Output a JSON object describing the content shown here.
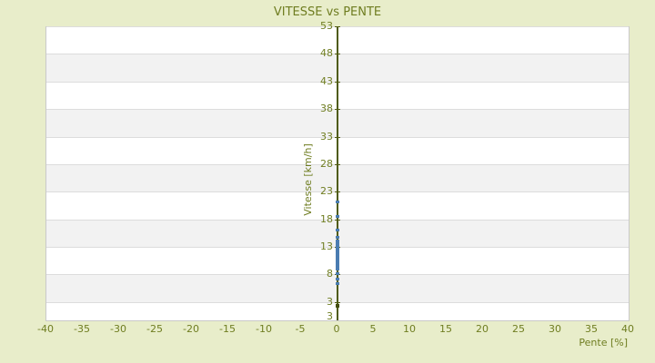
{
  "colors": {
    "page_background": "#e8edca",
    "text_olive": "#6f7d21",
    "axis_line": "#4f5b10",
    "band_gray": "#f2f2f2",
    "band_white": "#ffffff",
    "plot_border": "#c9c9c9",
    "point_blue": "#4a7cb1",
    "point_dark": "#444e0d"
  },
  "chart_data": {
    "type": "scatter",
    "title": "VITESSE vs PENTE",
    "xlabel": "Pente [%]",
    "ylabel": "Vitesse [km/h]",
    "xlim": [
      -40,
      40
    ],
    "ylim": [
      0,
      53
    ],
    "xticks": [
      -40,
      -35,
      -30,
      -25,
      -20,
      -15,
      -10,
      -5,
      0,
      5,
      10,
      15,
      20,
      25,
      30,
      35,
      40
    ],
    "yticks": [
      53,
      48,
      43,
      38,
      33,
      28,
      23,
      18,
      13,
      8,
      3
    ],
    "y_axis_bottom_label": "3",
    "grid": "alternating-horizontal-bands",
    "legend": "none",
    "series": [
      {
        "name": "vitesse-points",
        "color": "#4a7cb1",
        "points": [
          [
            0,
            21.1
          ],
          [
            0,
            18.5
          ],
          [
            0,
            16.1
          ],
          [
            0,
            14.8
          ],
          [
            0,
            14.0
          ],
          [
            0,
            13.75
          ],
          [
            0,
            13.5
          ],
          [
            0,
            13.25
          ],
          [
            0,
            13.0
          ],
          [
            0,
            12.75
          ],
          [
            0,
            12.5
          ],
          [
            0,
            12.25
          ],
          [
            0,
            12.0
          ],
          [
            0,
            11.75
          ],
          [
            0,
            11.5
          ],
          [
            0,
            11.25
          ],
          [
            0,
            11.0
          ],
          [
            0,
            10.75
          ],
          [
            0,
            10.5
          ],
          [
            0,
            10.25
          ],
          [
            0,
            10.0
          ],
          [
            0,
            9.75
          ],
          [
            0,
            9.5
          ],
          [
            0,
            9.25
          ],
          [
            0,
            9.0
          ],
          [
            0,
            8.2
          ],
          [
            0,
            7.2
          ],
          [
            0,
            6.3
          ]
        ]
      },
      {
        "name": "low-point",
        "color": "#444e0d",
        "points": [
          [
            0,
            2.3
          ]
        ]
      }
    ]
  }
}
